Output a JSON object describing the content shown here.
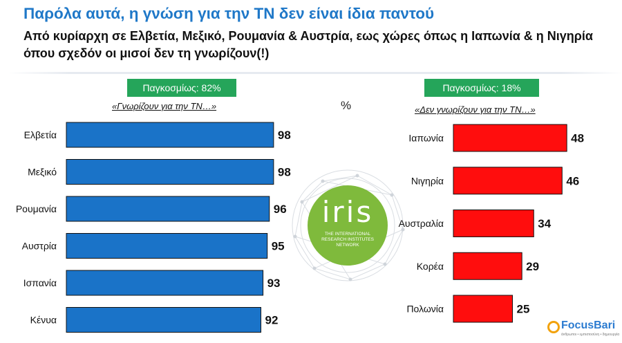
{
  "title": "Παρόλα αυτά, η γνώση για την ΤΝ δεν είναι ίδια παντού",
  "subtitle": "Από κυρίαρχη σε Ελβετία, Μεξικό, Ρουμανία & Αυστρία, εως χώρες όπως η Ιαπωνία & η Νιγηρία όπου σχεδόν οι μισοί δεν τη γνωρίζουν(!)",
  "left_panel": {
    "badge": "Παγκοσμίως: 82%",
    "caption": "«Γνωρίζουν για την ΤΝ…»"
  },
  "right_panel": {
    "badge": "Παγκοσμίως: 18%",
    "caption": "«Δεν γνωρίζουν για την ΤΝ…»"
  },
  "unit_label": "%",
  "iris_logo": {
    "word": "iris",
    "tagline": "THE INTERNATIONAL RESEARCH INSTITUTES NETWORK",
    "color": "#7fba3c"
  },
  "brand_logo": {
    "name": "FocusBari",
    "tagline": "άνθρωποι • εμπιστοσύνη • δημιουργία",
    "color": "#2b7bd0",
    "accent": "#f2a20c"
  },
  "chart_data": [
    {
      "type": "bar",
      "orientation": "horizontal",
      "categories": [
        "Ελβετία",
        "Μεξικό",
        "Ρουμανία",
        "Αυστρία",
        "Ισπανία",
        "Κένυα"
      ],
      "values": [
        98,
        98,
        96,
        95,
        93,
        92
      ],
      "data_labels": [
        "98",
        "98",
        "96",
        "95",
        "93",
        "92"
      ],
      "color": "#1a73c8"
    },
    {
      "type": "bar",
      "orientation": "horizontal",
      "categories": [
        "Ιαπωνία",
        "Νιγηρία",
        "Αυστραλία",
        "Κορέα",
        "Πολωνία"
      ],
      "values": [
        48,
        46,
        34,
        29,
        25
      ],
      "data_labels": [
        "48",
        "46",
        "34",
        "29",
        "25"
      ],
      "color": "#ff0d0d"
    }
  ]
}
